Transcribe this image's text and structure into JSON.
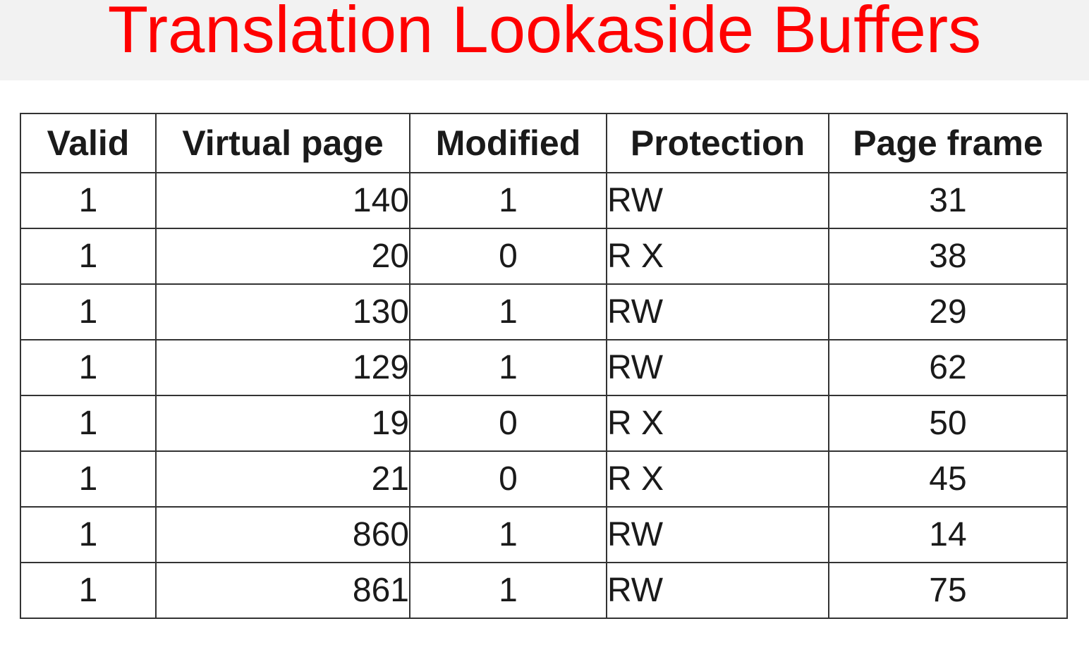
{
  "title": "Translation Lookaside Buffers",
  "table": {
    "headers": [
      "Valid",
      "Virtual page",
      "Modified",
      "Protection",
      "Page frame"
    ],
    "rows": [
      {
        "valid": "1",
        "virtual_page": "140",
        "modified": "1",
        "protection": "RW",
        "page_frame": "31"
      },
      {
        "valid": "1",
        "virtual_page": "20",
        "modified": "0",
        "protection": "R  X",
        "page_frame": "38"
      },
      {
        "valid": "1",
        "virtual_page": "130",
        "modified": "1",
        "protection": "RW",
        "page_frame": "29"
      },
      {
        "valid": "1",
        "virtual_page": "129",
        "modified": "1",
        "protection": "RW",
        "page_frame": "62"
      },
      {
        "valid": "1",
        "virtual_page": "19",
        "modified": "0",
        "protection": "R  X",
        "page_frame": "50"
      },
      {
        "valid": "1",
        "virtual_page": "21",
        "modified": "0",
        "protection": "R  X",
        "page_frame": "45"
      },
      {
        "valid": "1",
        "virtual_page": "860",
        "modified": "1",
        "protection": "RW",
        "page_frame": "14"
      },
      {
        "valid": "1",
        "virtual_page": "861",
        "modified": "1",
        "protection": "RW",
        "page_frame": "75"
      }
    ]
  },
  "colors": {
    "title": "#ff0000",
    "title_band": "#f2f2f2",
    "text": "#1a1a1a",
    "grid": "#333333"
  }
}
